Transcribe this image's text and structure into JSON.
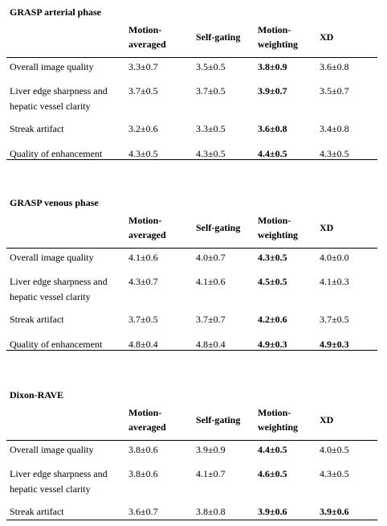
{
  "columns": [
    "Motion-averaged",
    "Self-gating",
    "Motion-weighting",
    "XD"
  ],
  "column_header_lines": [
    [
      "Motion-",
      "averaged"
    ],
    [
      "Self-gating"
    ],
    [
      "Motion-",
      "weighting"
    ],
    [
      "XD"
    ]
  ],
  "sections": [
    {
      "title": "GRASP arterial phase",
      "rows": [
        {
          "label": [
            "Overall image quality"
          ],
          "values": [
            "3.3±0.7",
            "3.5±0.5",
            "3.8±0.9",
            "3.6±0.8"
          ],
          "bold": [
            false,
            false,
            true,
            false
          ]
        },
        {
          "label": [
            "Liver edge sharpness and",
            "hepatic vessel clarity"
          ],
          "values": [
            "3.7±0.5",
            "3.7±0.5",
            "3.9±0.7",
            "3.5±0.7"
          ],
          "bold": [
            false,
            false,
            true,
            false
          ]
        },
        {
          "label": [
            "Streak artifact"
          ],
          "values": [
            "3.2±0.6",
            "3.3±0.5",
            "3.6±0.8",
            "3.4±0.8"
          ],
          "bold": [
            false,
            false,
            true,
            false
          ]
        },
        {
          "label": [
            "Quality of enhancement"
          ],
          "values": [
            "4.3±0.5",
            "4.3±0.5",
            "4.4±0.5",
            "4.3±0.5"
          ],
          "bold": [
            false,
            false,
            true,
            false
          ]
        }
      ]
    },
    {
      "title": "GRASP  venous phase",
      "rows": [
        {
          "label": [
            "Overall image quality"
          ],
          "values": [
            "4.1±0.6",
            "4.0±0.7",
            "4.3±0.5",
            "4.0±0.0"
          ],
          "bold": [
            false,
            false,
            true,
            false
          ]
        },
        {
          "label": [
            "Liver edge sharpness and",
            "hepatic vessel clarity"
          ],
          "values": [
            "4.3±0.7",
            "4.1±0.6",
            "4.5±0.5",
            "4.1±0.3"
          ],
          "bold": [
            false,
            false,
            true,
            false
          ]
        },
        {
          "label": [
            "Streak artifact"
          ],
          "values": [
            "3.7±0.5",
            "3.7±0.7",
            "4.2±0.6",
            "3.7±0.5"
          ],
          "bold": [
            false,
            false,
            true,
            false
          ]
        },
        {
          "label": [
            "Quality of enhancement"
          ],
          "values": [
            "4.8±0.4",
            "4.8±0.4",
            "4.9±0.3",
            "4.9±0.3"
          ],
          "bold": [
            false,
            false,
            true,
            true
          ]
        }
      ]
    },
    {
      "title": "Dixon-RAVE",
      "rows": [
        {
          "label": [
            "Overall image quality"
          ],
          "values": [
            "3.8±0.6",
            "3.9±0.9",
            "4.4±0.5",
            "4.0±0.5"
          ],
          "bold": [
            false,
            false,
            true,
            false
          ]
        },
        {
          "label": [
            "Liver edge sharpness and",
            "hepatic vessel clarity"
          ],
          "values": [
            "3.8±0.6",
            "4.1±0.7",
            "4.6±0.5",
            "4.3±0.5"
          ],
          "bold": [
            false,
            false,
            true,
            false
          ]
        },
        {
          "label": [
            "Streak artifact"
          ],
          "values": [
            "3.6±0.7",
            "3.8±0.8",
            "3.9±0.6",
            "3.9±0.6"
          ],
          "bold": [
            false,
            false,
            true,
            true
          ]
        }
      ]
    }
  ]
}
